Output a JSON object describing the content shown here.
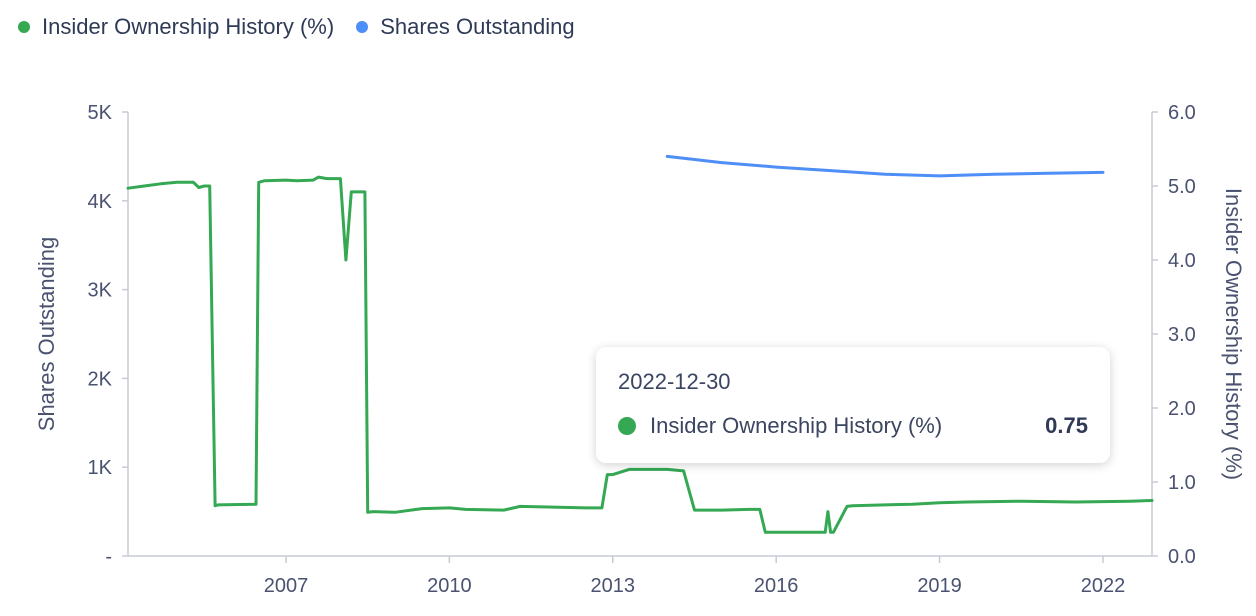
{
  "legend": {
    "insider_label": "Insider Ownership History (%)",
    "shares_label": "Shares Outstanding"
  },
  "tooltip": {
    "date": "2022-12-30",
    "series_label": "Insider Ownership History (%)",
    "value": "0.75"
  },
  "colors": {
    "insider": "#34a853",
    "shares": "#4e8ef7",
    "axis_text": "#4a5270",
    "axis_line": "#c7cbd6"
  },
  "chart_data": {
    "type": "line",
    "xlim": [
      2004.1,
      2022.9
    ],
    "x_ticks": [
      2007,
      2010,
      2013,
      2016,
      2019,
      2022
    ],
    "left_axis": {
      "label": "Shares Outstanding",
      "ylim": [
        0,
        5000
      ],
      "ticks": [
        0,
        1000,
        2000,
        3000,
        4000,
        5000
      ],
      "tick_labels": [
        "-",
        "1K",
        "2K",
        "3K",
        "4K",
        "5K"
      ]
    },
    "right_axis": {
      "label": "Insider Ownership History (%)",
      "ylim": [
        0,
        6
      ],
      "ticks": [
        0,
        1,
        2,
        3,
        4,
        5,
        6
      ],
      "tick_labels": [
        "0.0",
        "1.0",
        "2.0",
        "3.0",
        "4.0",
        "5.0",
        "6.0"
      ]
    },
    "series": [
      {
        "name": "Insider Ownership History (%)",
        "axis": "right",
        "x": [
          2004.1,
          2004.4,
          2004.7,
          2005.0,
          2005.3,
          2005.4,
          2005.5,
          2005.6,
          2005.7,
          2005.75,
          2006.45,
          2006.5,
          2006.6,
          2007.0,
          2007.2,
          2007.5,
          2007.6,
          2007.75,
          2007.8,
          2008.0,
          2008.1,
          2008.2,
          2008.4,
          2008.45,
          2008.5,
          2008.6,
          2009.0,
          2009.5,
          2010.0,
          2010.3,
          2011.0,
          2011.3,
          2012.0,
          2012.5,
          2012.8,
          2012.9,
          2013.0,
          2013.3,
          2014.0,
          2014.3,
          2014.5,
          2015.0,
          2015.5,
          2015.7,
          2015.8,
          2016.5,
          2016.9,
          2016.95,
          2017.0,
          2017.05,
          2017.3,
          2017.4,
          2018.0,
          2018.5,
          2019.0,
          2019.5,
          2020.5,
          2021.5,
          2022.5,
          2022.9
        ],
        "y": [
          4.97,
          5.0,
          5.03,
          5.05,
          5.05,
          4.98,
          5.0,
          5.0,
          0.68,
          0.69,
          0.7,
          5.05,
          5.07,
          5.08,
          5.07,
          5.08,
          5.12,
          5.1,
          5.1,
          5.1,
          4.0,
          4.92,
          4.92,
          4.92,
          0.59,
          0.6,
          0.59,
          0.64,
          0.65,
          0.63,
          0.62,
          0.67,
          0.66,
          0.65,
          0.65,
          1.1,
          1.1,
          1.17,
          1.17,
          1.15,
          0.62,
          0.62,
          0.63,
          0.63,
          0.32,
          0.32,
          0.32,
          0.6,
          0.32,
          0.32,
          0.67,
          0.68,
          0.69,
          0.7,
          0.72,
          0.73,
          0.74,
          0.73,
          0.74,
          0.75
        ]
      },
      {
        "name": "Shares Outstanding",
        "axis": "left",
        "x": [
          2014.0,
          2015.0,
          2016.0,
          2017.0,
          2018.0,
          2019.0,
          2020.0,
          2021.0,
          2022.0
        ],
        "y": [
          4500,
          4430,
          4380,
          4340,
          4300,
          4280,
          4300,
          4310,
          4320
        ]
      }
    ]
  }
}
